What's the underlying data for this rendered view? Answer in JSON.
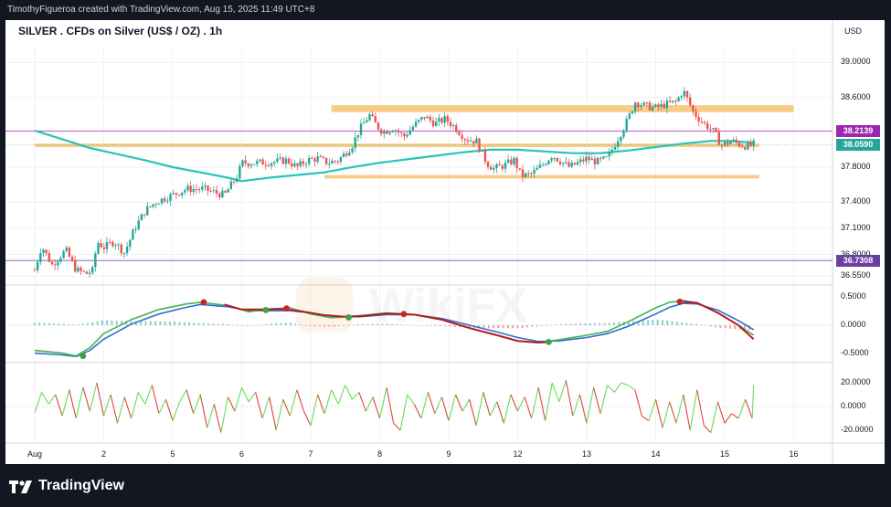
{
  "attribution": "TimothyFigueroa created with TradingView.com, Aug 15, 2025 11:49 UTC+8",
  "title": "SILVER . CFDs on Silver (US$ / OZ) . 1h",
  "currency": "USD",
  "watermark": "WikiFX",
  "footer_brand": "TradingView",
  "colors": {
    "candle_up": "#26a69a",
    "candle_down": "#ef5350",
    "sma": "#26c6b5",
    "zone": "#f7c77a",
    "line_upper": "#b23fc0",
    "line_lower": "#7a4fb0",
    "macd_fast": "#4caf50",
    "macd_slow": "#2b6fd6",
    "macd_signal_down": "#b71c1c",
    "tag_upper": "#9c27b0",
    "tag_price": "#26a69a",
    "tag_lower": "#6a3fa0"
  },
  "price_axis": {
    "ticks": [
      {
        "label": "39.0000",
        "value": 39.0
      },
      {
        "label": "38.6000",
        "value": 38.6
      },
      {
        "label": "37.8000",
        "value": 37.8
      },
      {
        "label": "37.4000",
        "value": 37.4
      },
      {
        "label": "37.1000",
        "value": 37.1
      },
      {
        "label": "36.8000",
        "value": 36.8
      },
      {
        "label": "36.5500",
        "value": 36.55
      }
    ],
    "tags": {
      "upper": {
        "label": "38.2139",
        "value": 38.2139
      },
      "price": {
        "label": "38.0590",
        "value": 38.059
      },
      "lower": {
        "label": "36.7308",
        "value": 36.7308
      }
    }
  },
  "macd_axis": [
    {
      "label": "0.5000",
      "value": 0.5
    },
    {
      "label": "0.0000",
      "value": 0.0
    },
    {
      "label": "-0.5000",
      "value": -0.5
    }
  ],
  "osc_axis": [
    {
      "label": "20.0000",
      "value": 20
    },
    {
      "label": "0.0000",
      "value": 0
    },
    {
      "label": "-20.0000",
      "value": -20
    }
  ],
  "time_axis": [
    {
      "label": "Aug",
      "day": 0
    },
    {
      "label": "2",
      "day": 1
    },
    {
      "label": "5",
      "day": 2
    },
    {
      "label": "6",
      "day": 3
    },
    {
      "label": "7",
      "day": 4
    },
    {
      "label": "8",
      "day": 5
    },
    {
      "label": "9",
      "day": 6
    },
    {
      "label": "12",
      "day": 7
    },
    {
      "label": "13",
      "day": 8
    },
    {
      "label": "14",
      "day": 9
    },
    {
      "label": "15",
      "day": 10
    },
    {
      "label": "16",
      "day": 11
    }
  ],
  "chart_data": {
    "type": "candlestick",
    "title": "SILVER . CFDs on Silver (US$ / OZ) . 1h",
    "y_range": [
      36.45,
      39.15
    ],
    "horizontal_levels": [
      38.2139,
      36.7308
    ],
    "zones": [
      {
        "from": 38.43,
        "to": 38.51,
        "start_day": 4.3,
        "end_day": 11.0
      },
      {
        "from": 38.03,
        "to": 38.07,
        "start_day": 0.0,
        "end_day": 10.5
      },
      {
        "from": 37.67,
        "to": 37.71,
        "start_day": 4.2,
        "end_day": 10.5
      }
    ],
    "close_path": [
      [
        0.0,
        36.62
      ],
      [
        0.1,
        36.9
      ],
      [
        0.25,
        36.68
      ],
      [
        0.45,
        36.85
      ],
      [
        0.6,
        36.62
      ],
      [
        0.75,
        36.58
      ],
      [
        0.85,
        36.62
      ],
      [
        0.9,
        36.95
      ],
      [
        1.0,
        36.88
      ],
      [
        1.15,
        36.95
      ],
      [
        1.3,
        36.82
      ],
      [
        1.45,
        37.1
      ],
      [
        1.6,
        37.3
      ],
      [
        1.75,
        37.4
      ],
      [
        1.9,
        37.45
      ],
      [
        2.05,
        37.5
      ],
      [
        2.2,
        37.55
      ],
      [
        2.45,
        37.55
      ],
      [
        2.65,
        37.5
      ],
      [
        2.75,
        37.48
      ],
      [
        2.85,
        37.6
      ],
      [
        2.95,
        37.72
      ],
      [
        3.0,
        37.85
      ],
      [
        3.2,
        37.85
      ],
      [
        3.45,
        37.86
      ],
      [
        3.65,
        37.88
      ],
      [
        3.8,
        37.8
      ],
      [
        3.95,
        37.88
      ],
      [
        4.1,
        37.9
      ],
      [
        4.25,
        37.85
      ],
      [
        4.4,
        37.88
      ],
      [
        4.5,
        37.96
      ],
      [
        4.6,
        38.05
      ],
      [
        4.7,
        38.22
      ],
      [
        4.85,
        38.4
      ],
      [
        4.95,
        38.28
      ],
      [
        5.05,
        38.2
      ],
      [
        5.2,
        38.25
      ],
      [
        5.35,
        38.15
      ],
      [
        5.5,
        38.28
      ],
      [
        5.65,
        38.38
      ],
      [
        5.8,
        38.3
      ],
      [
        5.95,
        38.35
      ],
      [
        6.1,
        38.25
      ],
      [
        6.25,
        38.12
      ],
      [
        6.4,
        38.1
      ],
      [
        6.55,
        37.85
      ],
      [
        6.65,
        37.78
      ],
      [
        6.8,
        37.82
      ],
      [
        6.95,
        37.88
      ],
      [
        7.05,
        37.7
      ],
      [
        7.2,
        37.72
      ],
      [
        7.35,
        37.82
      ],
      [
        7.5,
        37.94
      ],
      [
        7.6,
        37.88
      ],
      [
        7.75,
        37.8
      ],
      [
        7.9,
        37.86
      ],
      [
        8.0,
        37.9
      ],
      [
        8.15,
        37.86
      ],
      [
        8.3,
        37.9
      ],
      [
        8.4,
        38.05
      ],
      [
        8.5,
        38.2
      ],
      [
        8.6,
        38.35
      ],
      [
        8.7,
        38.55
      ],
      [
        8.85,
        38.5
      ],
      [
        9.0,
        38.48
      ],
      [
        9.15,
        38.52
      ],
      [
        9.3,
        38.55
      ],
      [
        9.4,
        38.68
      ],
      [
        9.55,
        38.42
      ],
      [
        9.7,
        38.3
      ],
      [
        9.85,
        38.2
      ],
      [
        9.95,
        38.05
      ],
      [
        10.1,
        38.1
      ],
      [
        10.25,
        38.05
      ],
      [
        10.35,
        38.04
      ],
      [
        10.42,
        38.06
      ]
    ],
    "sma_path": [
      [
        0.0,
        38.22
      ],
      [
        0.4,
        38.12
      ],
      [
        0.8,
        38.02
      ],
      [
        1.2,
        37.95
      ],
      [
        1.6,
        37.88
      ],
      [
        2.0,
        37.8
      ],
      [
        2.4,
        37.74
      ],
      [
        2.8,
        37.68
      ],
      [
        3.0,
        37.64
      ],
      [
        3.4,
        37.68
      ],
      [
        3.8,
        37.71
      ],
      [
        4.2,
        37.74
      ],
      [
        4.6,
        37.8
      ],
      [
        5.0,
        37.85
      ],
      [
        5.4,
        37.89
      ],
      [
        5.8,
        37.93
      ],
      [
        6.2,
        37.97
      ],
      [
        6.6,
        38.0
      ],
      [
        7.0,
        38.0
      ],
      [
        7.4,
        37.98
      ],
      [
        7.8,
        37.96
      ],
      [
        8.2,
        37.96
      ],
      [
        8.6,
        37.99
      ],
      [
        9.0,
        38.03
      ],
      [
        9.4,
        38.07
      ],
      [
        9.8,
        38.1
      ],
      [
        10.1,
        38.1
      ],
      [
        10.42,
        38.08
      ]
    ],
    "macd_range": [
      -0.62,
      0.62
    ],
    "macd_fast": [
      [
        0.0,
        -0.45
      ],
      [
        0.4,
        -0.5
      ],
      [
        0.6,
        -0.55
      ],
      [
        0.8,
        -0.4
      ],
      [
        1.0,
        -0.15
      ],
      [
        1.4,
        0.1
      ],
      [
        1.8,
        0.28
      ],
      [
        2.2,
        0.38
      ],
      [
        2.4,
        0.41
      ],
      [
        2.8,
        0.35
      ],
      [
        3.1,
        0.24
      ],
      [
        3.4,
        0.29
      ],
      [
        3.7,
        0.31
      ],
      [
        4.0,
        0.2
      ],
      [
        4.3,
        0.13
      ],
      [
        4.7,
        0.17
      ],
      [
        5.1,
        0.22
      ],
      [
        5.5,
        0.19
      ],
      [
        5.9,
        0.1
      ],
      [
        6.3,
        -0.05
      ],
      [
        6.7,
        -0.18
      ],
      [
        7.0,
        -0.28
      ],
      [
        7.3,
        -0.31
      ],
      [
        7.6,
        -0.26
      ],
      [
        8.0,
        -0.18
      ],
      [
        8.3,
        -0.11
      ],
      [
        8.6,
        0.06
      ],
      [
        9.0,
        0.31
      ],
      [
        9.2,
        0.41
      ],
      [
        9.4,
        0.44
      ],
      [
        9.6,
        0.4
      ],
      [
        9.9,
        0.22
      ],
      [
        10.2,
        0.0
      ],
      [
        10.42,
        -0.18
      ]
    ],
    "macd_slow": [
      [
        0.0,
        -0.5
      ],
      [
        0.4,
        -0.53
      ],
      [
        0.6,
        -0.56
      ],
      [
        0.8,
        -0.45
      ],
      [
        1.0,
        -0.25
      ],
      [
        1.4,
        0.02
      ],
      [
        1.8,
        0.2
      ],
      [
        2.2,
        0.32
      ],
      [
        2.4,
        0.37
      ],
      [
        2.8,
        0.33
      ],
      [
        3.1,
        0.26
      ],
      [
        3.4,
        0.26
      ],
      [
        3.7,
        0.26
      ],
      [
        4.0,
        0.22
      ],
      [
        4.3,
        0.16
      ],
      [
        4.7,
        0.15
      ],
      [
        5.1,
        0.19
      ],
      [
        5.5,
        0.19
      ],
      [
        5.9,
        0.12
      ],
      [
        6.3,
        0.0
      ],
      [
        6.7,
        -0.12
      ],
      [
        7.0,
        -0.22
      ],
      [
        7.3,
        -0.29
      ],
      [
        7.6,
        -0.28
      ],
      [
        8.0,
        -0.22
      ],
      [
        8.3,
        -0.15
      ],
      [
        8.6,
        -0.02
      ],
      [
        9.0,
        0.2
      ],
      [
        9.2,
        0.32
      ],
      [
        9.4,
        0.39
      ],
      [
        9.6,
        0.38
      ],
      [
        9.9,
        0.27
      ],
      [
        10.2,
        0.08
      ],
      [
        10.42,
        -0.08
      ]
    ],
    "macd_signal_red": [
      [
        2.75,
        0.37
      ],
      [
        3.0,
        0.28
      ],
      [
        3.3,
        0.28
      ],
      [
        3.6,
        0.29
      ],
      [
        3.9,
        0.24
      ],
      [
        4.2,
        0.18
      ],
      [
        4.5,
        0.15
      ],
      [
        4.8,
        0.17
      ],
      [
        5.1,
        0.21
      ],
      [
        5.5,
        0.19
      ],
      [
        5.9,
        0.1
      ],
      [
        6.3,
        -0.05
      ],
      [
        6.7,
        -0.18
      ],
      [
        7.0,
        -0.28
      ],
      [
        7.3,
        -0.31
      ],
      [
        7.45,
        -0.3
      ],
      [
        9.4,
        0.42
      ],
      [
        9.6,
        0.4
      ],
      [
        9.9,
        0.22
      ],
      [
        10.2,
        0.0
      ],
      [
        10.42,
        -0.25
      ]
    ],
    "macd_cross_markers": [
      {
        "day": 0.7,
        "value": -0.55,
        "color": "green"
      },
      {
        "day": 2.45,
        "value": 0.41,
        "color": "red"
      },
      {
        "day": 3.35,
        "value": 0.27,
        "color": "green"
      },
      {
        "day": 3.65,
        "value": 0.3,
        "color": "red"
      },
      {
        "day": 4.55,
        "value": 0.14,
        "color": "green"
      },
      {
        "day": 5.35,
        "value": 0.2,
        "color": "red"
      },
      {
        "day": 7.45,
        "value": -0.3,
        "color": "green"
      },
      {
        "day": 9.35,
        "value": 0.42,
        "color": "red"
      }
    ],
    "osc_range": [
      -30,
      30
    ],
    "osc_path": [
      [
        0.0,
        -5
      ],
      [
        0.1,
        12
      ],
      [
        0.2,
        2
      ],
      [
        0.3,
        10
      ],
      [
        0.4,
        -8
      ],
      [
        0.5,
        14
      ],
      [
        0.6,
        -10
      ],
      [
        0.7,
        16
      ],
      [
        0.8,
        -4
      ],
      [
        0.9,
        20
      ],
      [
        1.0,
        -8
      ],
      [
        1.1,
        10
      ],
      [
        1.2,
        -14
      ],
      [
        1.3,
        8
      ],
      [
        1.4,
        -10
      ],
      [
        1.5,
        12
      ],
      [
        1.6,
        2
      ],
      [
        1.7,
        18
      ],
      [
        1.8,
        -6
      ],
      [
        1.9,
        6
      ],
      [
        2.0,
        -12
      ],
      [
        2.1,
        4
      ],
      [
        2.2,
        14
      ],
      [
        2.3,
        -6
      ],
      [
        2.4,
        10
      ],
      [
        2.5,
        -18
      ],
      [
        2.6,
        2
      ],
      [
        2.7,
        -22
      ],
      [
        2.8,
        8
      ],
      [
        2.9,
        -4
      ],
      [
        3.0,
        16
      ],
      [
        3.1,
        4
      ],
      [
        3.2,
        12
      ],
      [
        3.3,
        -10
      ],
      [
        3.4,
        8
      ],
      [
        3.5,
        -20
      ],
      [
        3.6,
        6
      ],
      [
        3.7,
        -8
      ],
      [
        3.8,
        14
      ],
      [
        3.9,
        -4
      ],
      [
        4.0,
        -16
      ],
      [
        4.1,
        10
      ],
      [
        4.2,
        -6
      ],
      [
        4.3,
        14
      ],
      [
        4.4,
        2
      ],
      [
        4.5,
        18
      ],
      [
        4.6,
        6
      ],
      [
        4.7,
        12
      ],
      [
        4.8,
        -4
      ],
      [
        4.9,
        8
      ],
      [
        5.0,
        -10
      ],
      [
        5.1,
        16
      ],
      [
        5.2,
        -14
      ],
      [
        5.3,
        -20
      ],
      [
        5.4,
        10
      ],
      [
        5.5,
        2
      ],
      [
        5.6,
        -10
      ],
      [
        5.7,
        12
      ],
      [
        5.8,
        -6
      ],
      [
        5.9,
        8
      ],
      [
        6.0,
        -12
      ],
      [
        6.1,
        10
      ],
      [
        6.2,
        -4
      ],
      [
        6.3,
        6
      ],
      [
        6.4,
        -16
      ],
      [
        6.5,
        12
      ],
      [
        6.6,
        -8
      ],
      [
        6.7,
        4
      ],
      [
        6.8,
        -14
      ],
      [
        6.9,
        10
      ],
      [
        7.0,
        -4
      ],
      [
        7.1,
        8
      ],
      [
        7.2,
        -10
      ],
      [
        7.3,
        16
      ],
      [
        7.4,
        -12
      ],
      [
        7.5,
        20
      ],
      [
        7.6,
        4
      ],
      [
        7.7,
        22
      ],
      [
        7.8,
        -8
      ],
      [
        7.9,
        10
      ],
      [
        8.0,
        -14
      ],
      [
        8.1,
        16
      ],
      [
        8.2,
        -6
      ],
      [
        8.3,
        18
      ],
      [
        8.4,
        12
      ],
      [
        8.5,
        20
      ],
      [
        8.6,
        18
      ],
      [
        8.7,
        14
      ],
      [
        8.8,
        -8
      ],
      [
        8.9,
        -12
      ],
      [
        9.0,
        6
      ],
      [
        9.1,
        -18
      ],
      [
        9.2,
        4
      ],
      [
        9.3,
        -14
      ],
      [
        9.4,
        10
      ],
      [
        9.5,
        -20
      ],
      [
        9.6,
        14
      ],
      [
        9.7,
        -16
      ],
      [
        9.8,
        -22
      ],
      [
        9.9,
        4
      ],
      [
        10.0,
        -14
      ],
      [
        10.1,
        -6
      ],
      [
        10.2,
        -10
      ],
      [
        10.3,
        6
      ],
      [
        10.4,
        -10
      ],
      [
        10.42,
        18
      ]
    ]
  }
}
